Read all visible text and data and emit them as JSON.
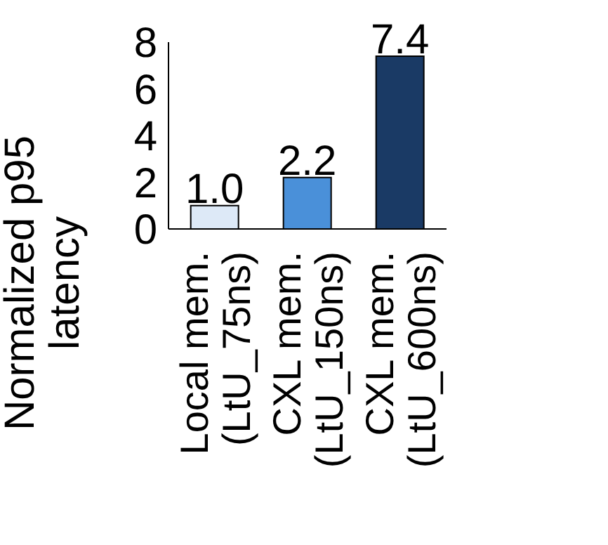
{
  "chart_data": {
    "type": "bar",
    "ylabel": "Normalized p95\nlatency",
    "categories": [
      "Local mem.\n(LtU_75ns)",
      "CXL mem.\n(LtU_150ns)",
      "CXL mem.\n(LtU_600ns)"
    ],
    "values": [
      1.0,
      2.2,
      7.4
    ],
    "colors": [
      "#dde9f7",
      "#4a90d9",
      "#1a3a65"
    ],
    "value_labels": [
      "1.0",
      "2.2",
      "7.4"
    ],
    "ylim": [
      0,
      8
    ],
    "yticks": [
      0,
      2,
      4,
      6,
      8
    ]
  }
}
